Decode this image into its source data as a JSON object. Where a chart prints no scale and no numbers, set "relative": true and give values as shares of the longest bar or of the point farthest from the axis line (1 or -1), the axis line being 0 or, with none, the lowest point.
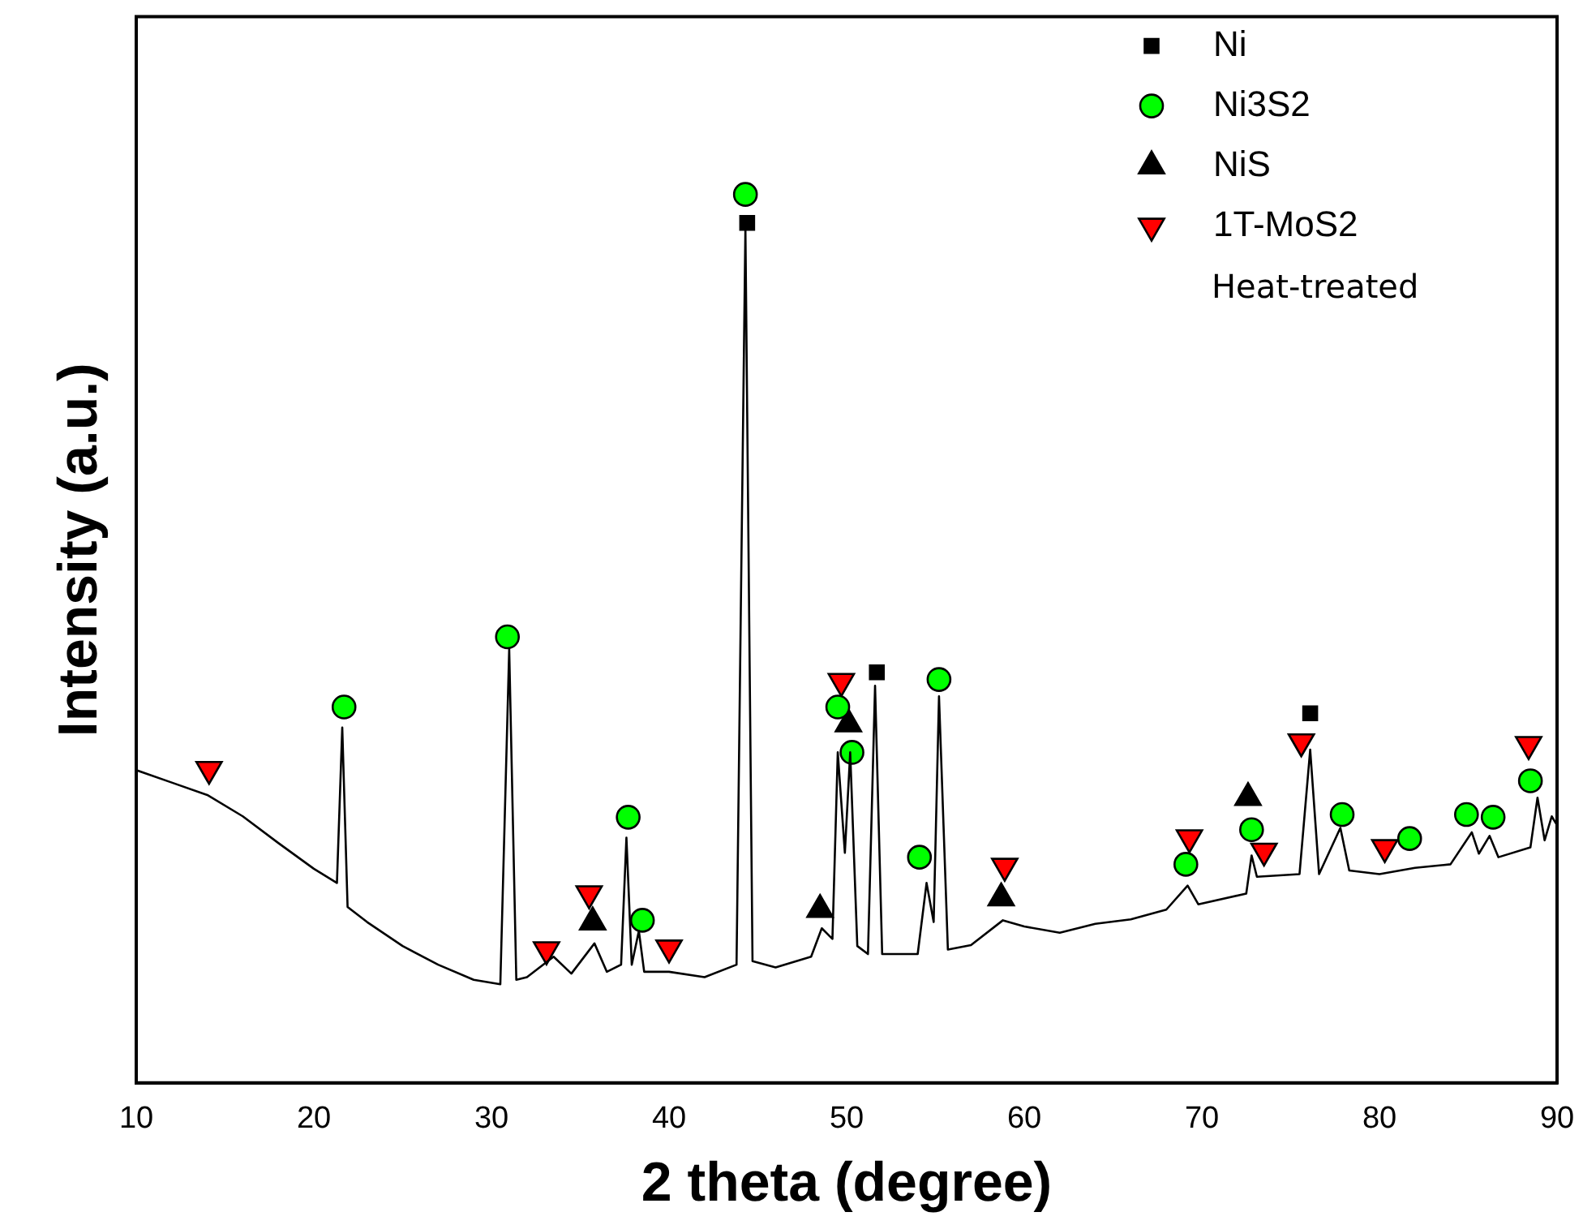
{
  "chart_data": {
    "type": "line",
    "relative": true,
    "xlabel": "2 theta (degree)",
    "ylabel": "Intensity (a.u.)",
    "xlim": [
      10,
      90
    ],
    "xticks": [
      10,
      20,
      30,
      40,
      50,
      60,
      70,
      80,
      90
    ],
    "legend": "top right",
    "grid": false,
    "annotations": [
      "Heat-treated"
    ],
    "series": [
      {
        "color": "#000000",
        "marker": "none",
        "x": [
          10,
          12,
          14,
          16,
          18,
          20,
          21.3,
          21.6,
          21.9,
          23,
          25,
          27,
          29,
          30.5,
          31.0,
          31.4,
          32,
          33.5,
          34.5,
          35.8,
          36.5,
          37.3,
          37.6,
          37.9,
          38.3,
          38.6,
          40,
          42,
          43.8,
          44.3,
          44.7,
          46,
          48,
          48.6,
          49.2,
          49.5,
          49.9,
          50.2,
          50.6,
          51.2,
          51.6,
          52.0,
          54,
          54.5,
          54.9,
          55.2,
          55.7,
          57,
          58.8,
          60,
          62,
          64,
          66,
          68,
          69.2,
          69.8,
          72.5,
          72.8,
          73.1,
          75.5,
          76.1,
          76.6,
          77.8,
          78.3,
          80,
          82,
          84,
          85.2,
          85.6,
          86.2,
          86.7,
          88.5,
          88.9,
          89.3,
          89.7,
          90
        ],
        "values": [
          0.352,
          0.338,
          0.324,
          0.3,
          0.27,
          0.241,
          0.225,
          0.4,
          0.198,
          0.181,
          0.154,
          0.133,
          0.116,
          0.111,
          0.488,
          0.116,
          0.119,
          0.142,
          0.123,
          0.157,
          0.125,
          0.133,
          0.276,
          0.133,
          0.171,
          0.125,
          0.125,
          0.119,
          0.133,
          0.961,
          0.137,
          0.13,
          0.142,
          0.174,
          0.162,
          0.372,
          0.259,
          0.372,
          0.154,
          0.145,
          0.447,
          0.145,
          0.145,
          0.225,
          0.181,
          0.435,
          0.15,
          0.155,
          0.183,
          0.176,
          0.169,
          0.179,
          0.184,
          0.195,
          0.222,
          0.201,
          0.213,
          0.256,
          0.232,
          0.235,
          0.375,
          0.235,
          0.287,
          0.239,
          0.235,
          0.242,
          0.246,
          0.282,
          0.258,
          0.278,
          0.254,
          0.265,
          0.321,
          0.273,
          0.3,
          0.29
        ]
      },
      {
        "type": "scatter",
        "name": "Ni",
        "color": "#000000",
        "marker": "square",
        "x": [
          44.4,
          51.7,
          76.1
        ],
        "values": [
          0.968,
          0.462,
          0.416
        ]
      },
      {
        "type": "scatter",
        "name": "Ni3S2",
        "color": "#00ff00",
        "marker": "circle",
        "x": [
          21.7,
          30.9,
          37.7,
          38.5,
          44.3,
          49.5,
          50.3,
          54.1,
          55.2,
          69.1,
          72.8,
          77.9,
          81.7,
          84.9,
          86.4,
          88.5
        ],
        "values": [
          0.423,
          0.502,
          0.299,
          0.183,
          1.0,
          0.423,
          0.372,
          0.254,
          0.454,
          0.246,
          0.285,
          0.302,
          0.275,
          0.302,
          0.299,
          0.34
        ]
      },
      {
        "type": "scatter",
        "name": "NiS",
        "color": "#000000",
        "marker": "triangle",
        "x": [
          35.7,
          48.5,
          50.1,
          58.7,
          72.6
        ],
        "values": [
          0.181,
          0.195,
          0.404,
          0.208,
          0.321
        ]
      },
      {
        "type": "scatter",
        "name": "1T-MoS2",
        "color": "#ff0000",
        "marker": "triangle_down",
        "x": [
          14.1,
          33.1,
          35.5,
          40.0,
          49.7,
          58.9,
          69.3,
          73.5,
          75.6,
          80.3,
          88.4
        ],
        "values": [
          0.353,
          0.15,
          0.213,
          0.152,
          0.452,
          0.244,
          0.276,
          0.261,
          0.384,
          0.265,
          0.381
        ]
      }
    ]
  }
}
